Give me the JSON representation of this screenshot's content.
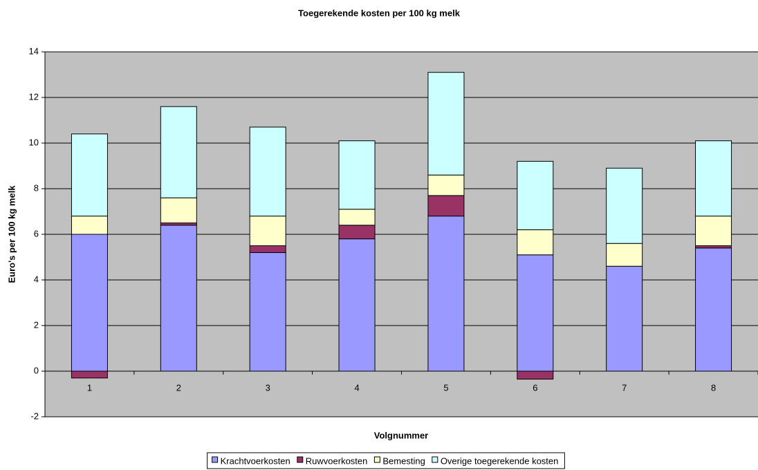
{
  "chart_data": {
    "type": "stacked_bar",
    "title": "Toegerekende kosten per 100 kg melk",
    "x_label": "Volgnummer",
    "y_label": "Euro's per 100 kg melk",
    "categories": [
      "1",
      "2",
      "3",
      "4",
      "5",
      "6",
      "7",
      "8"
    ],
    "series": [
      {
        "name": "Krachtvoerkosten",
        "color": "#9999ff",
        "values": [
          6.0,
          6.4,
          5.2,
          5.8,
          6.8,
          5.1,
          4.6,
          5.4
        ]
      },
      {
        "name": "Ruwvoerkosten",
        "color": "#993366",
        "values": [
          -0.3,
          0.1,
          0.3,
          0.6,
          0.9,
          -0.35,
          0,
          0.1
        ]
      },
      {
        "name": "Bemesting",
        "color": "#ffffcc",
        "values": [
          0.8,
          1.1,
          1.3,
          0.7,
          0.9,
          1.1,
          1.0,
          1.3
        ]
      },
      {
        "name": "Overige toegerekende kosten",
        "color": "#ccffff",
        "values": [
          3.6,
          4.0,
          3.9,
          3.0,
          4.5,
          3.0,
          3.3,
          3.3
        ]
      }
    ],
    "ylim": [
      -2,
      14
    ],
    "yticks": [
      -2,
      0,
      2,
      4,
      6,
      8,
      10,
      12,
      14
    ],
    "grid": true,
    "plot_background": "#c0c0c0",
    "legend": "bottom"
  }
}
